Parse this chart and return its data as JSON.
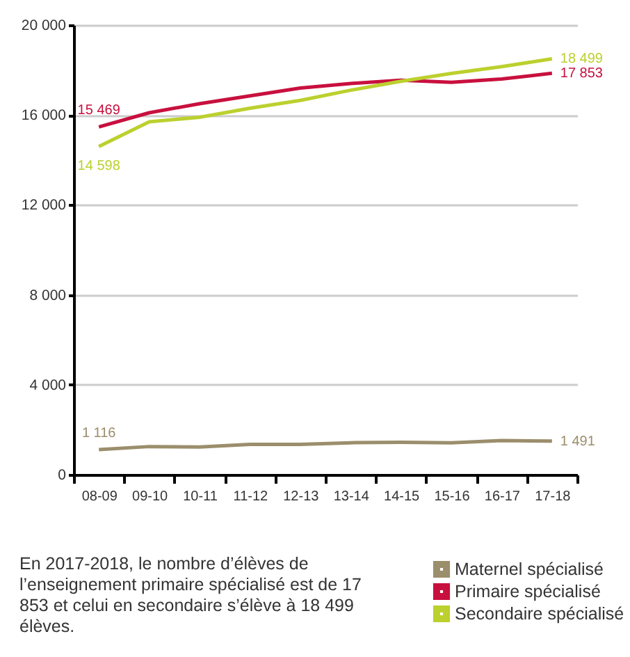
{
  "chart_data": {
    "type": "line",
    "categories": [
      "08-09",
      "09-10",
      "10-11",
      "11-12",
      "12-13",
      "13-14",
      "14-15",
      "15-16",
      "16-17",
      "17-18"
    ],
    "series": [
      {
        "name": "Maternel spécialisé",
        "color": "#9b8e6c",
        "values": [
          1116,
          1250,
          1230,
          1350,
          1350,
          1420,
          1440,
          1420,
          1520,
          1491
        ],
        "value_labels": [
          "1 116",
          null,
          null,
          null,
          null,
          null,
          null,
          null,
          null,
          "1 491"
        ]
      },
      {
        "name": "Primaire spécialisé",
        "color": "#c8103e",
        "values": [
          15469,
          16100,
          16500,
          16850,
          17200,
          17400,
          17550,
          17450,
          17600,
          17853
        ],
        "value_labels": [
          "15 469",
          null,
          null,
          null,
          null,
          null,
          null,
          null,
          null,
          "17 853"
        ]
      },
      {
        "name": "Secondaire spécialisé",
        "color": "#bcd02e",
        "values": [
          14598,
          15700,
          15900,
          16300,
          16650,
          17100,
          17500,
          17850,
          18150,
          18499
        ],
        "value_labels": [
          "14 598",
          null,
          null,
          null,
          null,
          null,
          null,
          null,
          null,
          "18 499"
        ]
      }
    ],
    "ylim": [
      0,
      20000
    ],
    "yticks": [
      0,
      4000,
      8000,
      12000,
      16000,
      20000
    ],
    "grid": "y",
    "legend": "bottom right",
    "marker": "none",
    "line_style": "solid",
    "annotations": [
      "En 2017-2018, le nombre d’élèves de l’enseignement primaire spécialisé est de 17 853 et celui en secondaire s’élève à 18 499 élèves."
    ]
  }
}
